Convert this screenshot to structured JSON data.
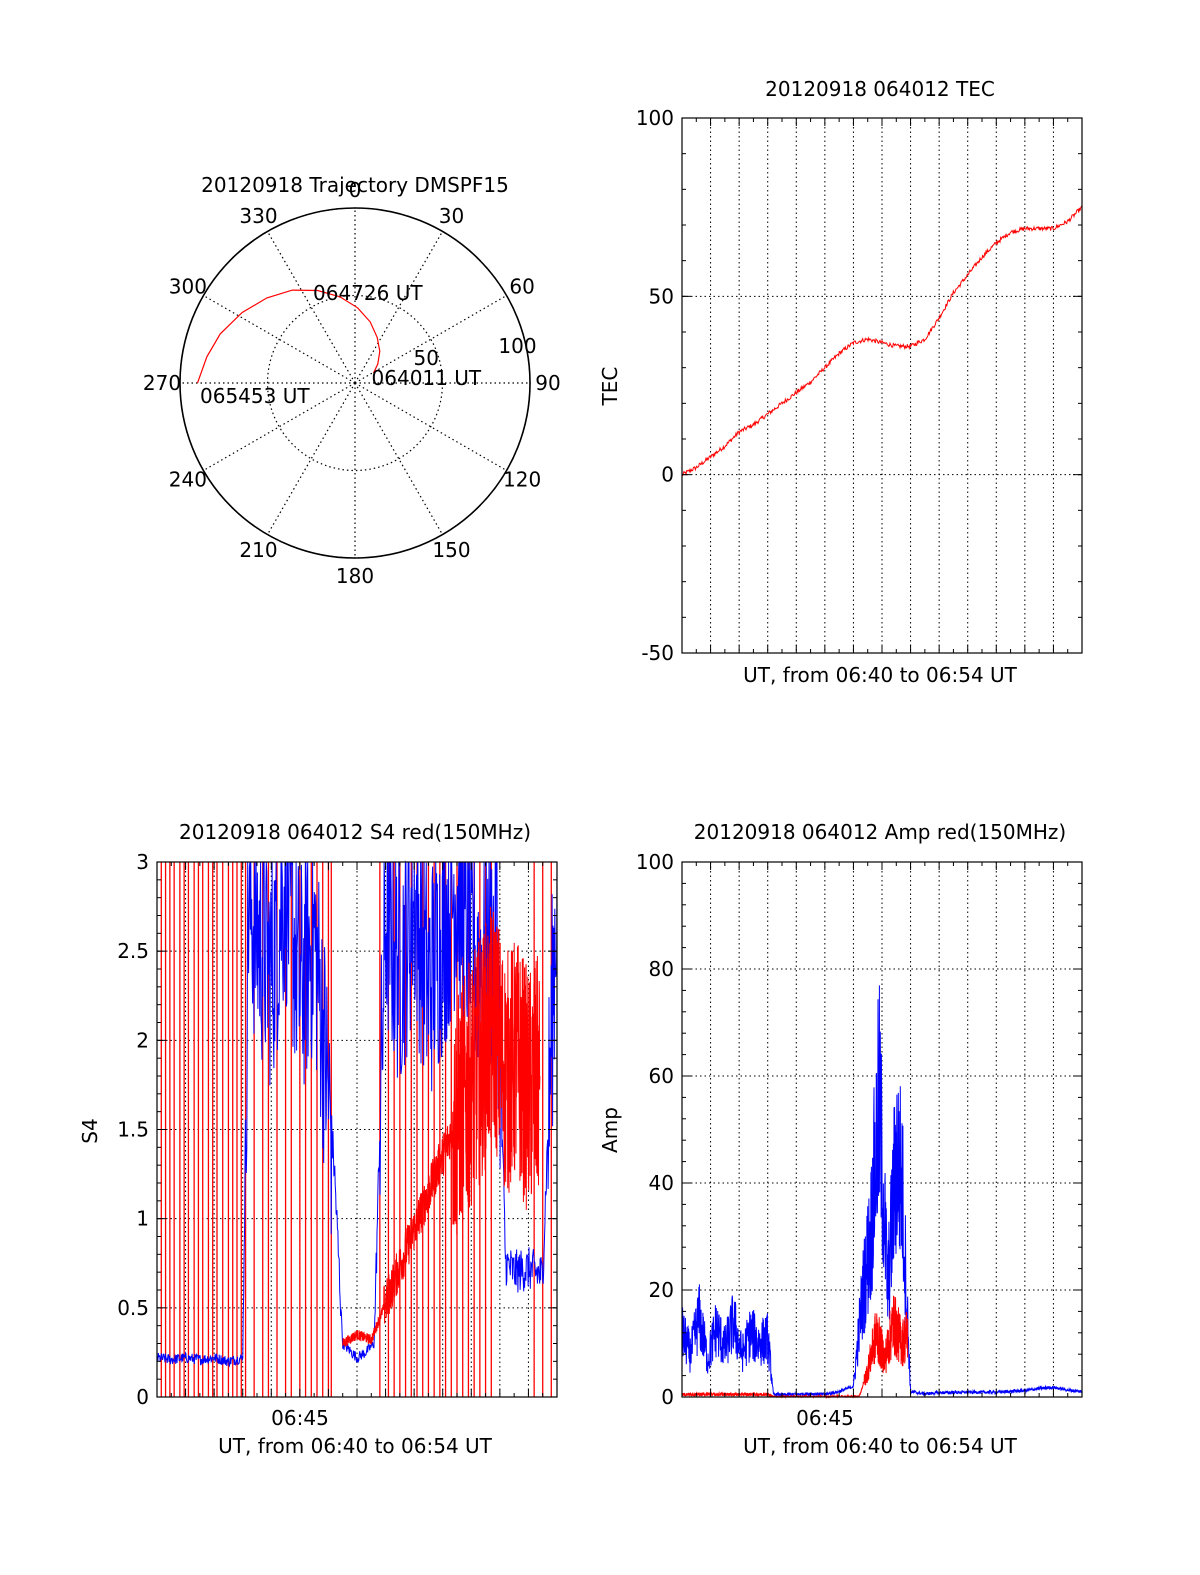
{
  "colors": {
    "red": "#ff0000",
    "blue": "#0000ff",
    "axis": "#000000",
    "grid": "#000000",
    "background": "#ffffff"
  },
  "chart_data": [
    {
      "id": "trajectory",
      "type": "polar",
      "title": "20120918 Trajectory DMSPF15",
      "angle_direction": "clockwise from top",
      "angle_labels": [
        "0",
        "30",
        "60",
        "90",
        "120",
        "150",
        "180",
        "210",
        "240",
        "270",
        "300",
        "330"
      ],
      "radial_labels": [
        "50",
        "100"
      ],
      "radial_range": [
        0,
        100
      ],
      "grid": true,
      "series": [
        {
          "color": "red",
          "points_az_el": [
            [
              62,
              12
            ],
            [
              50,
              17
            ],
            [
              38,
              23
            ],
            [
              26,
              29
            ],
            [
              14,
              36
            ],
            [
              2,
              43
            ],
            [
              -10,
              50
            ],
            [
              -22,
              57
            ],
            [
              -34,
              64
            ],
            [
              -46,
              70
            ],
            [
              -58,
              76
            ],
            [
              -70,
              82
            ],
            [
              -80,
              86
            ],
            [
              -90,
              90
            ]
          ]
        }
      ],
      "annotations": [
        {
          "text": "064011 UT",
          "az": 62,
          "r": 12
        },
        {
          "text": "064726 UT",
          "az": 10,
          "r": 58
        },
        {
          "text": "065453 UT",
          "az": 262,
          "r": 86
        }
      ]
    },
    {
      "id": "tec",
      "type": "line",
      "title": "20120918 064012 TEC",
      "xlabel": "UT, from 06:40 to 06:54 UT",
      "ylabel": "TEC",
      "xlim": [
        0,
        14
      ],
      "ylim": [
        -50,
        100
      ],
      "yticks": [
        "100",
        "50",
        "0",
        "-50"
      ],
      "grid": true,
      "series": [
        {
          "color": "red",
          "x": [
            0,
            0.5,
            1,
            1.5,
            2,
            2.5,
            3,
            3.5,
            4,
            4.5,
            5,
            5.5,
            6,
            6.5,
            7,
            7.5,
            8,
            8.5,
            9,
            9.5,
            10,
            10.5,
            11,
            11.5,
            12,
            12.5,
            13,
            13.5,
            14
          ],
          "values": [
            0,
            2,
            5,
            8,
            12,
            14,
            17,
            20,
            23,
            26,
            30,
            34,
            37,
            38,
            37,
            36,
            36,
            38,
            44,
            51,
            56,
            61,
            65,
            68,
            69,
            69,
            69,
            71,
            75
          ]
        }
      ]
    },
    {
      "id": "s4",
      "type": "line",
      "title": "20120918 064012 S4 red(150MHz)",
      "xlabel": "UT, from 06:40 to 06:54 UT",
      "ylabel": "S4",
      "xtick_label": "06:45",
      "xlim": [
        0,
        14
      ],
      "ylim": [
        0,
        3
      ],
      "yticks": [
        "3",
        "2.5",
        "2",
        "1.5",
        "1",
        "0.5",
        "0"
      ],
      "grid": true,
      "series": [
        {
          "color": "blue",
          "x": [
            0,
            0.5,
            1,
            1.5,
            2,
            2.5,
            3,
            3.2,
            3.5,
            4,
            4.5,
            5,
            5.5,
            6,
            6.2,
            6.5,
            7,
            7.3,
            7.6,
            8,
            8.5,
            9,
            9.5,
            10,
            10.5,
            11,
            11.5,
            11.9,
            12.2,
            12.5,
            13,
            13.5,
            14
          ],
          "values": [
            0.22,
            0.21,
            0.22,
            0.21,
            0.22,
            0.2,
            0.22,
            2.8,
            2.6,
            2.4,
            2.9,
            2.3,
            2.6,
            1.7,
            1.3,
            0.3,
            0.22,
            0.25,
            0.3,
            2.7,
            2.4,
            2.8,
            2.3,
            2.6,
            2.9,
            2.5,
            2.4,
            2.6,
            0.75,
            0.7,
            0.72,
            0.68,
            2.9
          ]
        },
        {
          "color": "red",
          "x": [
            6.5,
            7,
            7.5,
            11.8,
            12.2,
            12.6,
            13,
            13.4
          ],
          "values": [
            0.3,
            0.35,
            0.32,
            2.1,
            1.8,
            1.9,
            1.7,
            1.8
          ]
        }
      ]
    },
    {
      "id": "amp",
      "type": "line",
      "title": "20120918 064012 Amp red(150MHz)",
      "xlabel": "UT, from 06:40 to 06:54 UT",
      "ylabel": "Amp",
      "xtick_label": "06:45",
      "xlim": [
        0,
        14
      ],
      "ylim": [
        0,
        100
      ],
      "yticks": [
        "100",
        "80",
        "60",
        "40",
        "20",
        "0"
      ],
      "grid": true,
      "series": [
        {
          "color": "blue",
          "x": [
            0,
            0.3,
            0.6,
            0.9,
            1.2,
            1.5,
            1.8,
            2.1,
            2.4,
            2.7,
            3.0,
            3.2,
            3.5,
            4,
            4.5,
            5,
            5.5,
            6,
            6.3,
            6.6,
            6.9,
            7.2,
            7.5,
            7.7,
            8,
            8.5,
            9,
            10,
            11,
            12,
            12.5,
            13,
            13.5,
            14
          ],
          "values": [
            12,
            8,
            15,
            7,
            13,
            9,
            14,
            8,
            12,
            10,
            11,
            0.5,
            0.4,
            0.5,
            0.6,
            0.5,
            1,
            2,
            18,
            30,
            55,
            20,
            45,
            40,
            1,
            0.6,
            0.8,
            0.9,
            0.9,
            1.2,
            1.6,
            1.8,
            1.3,
            1
          ]
        },
        {
          "color": "red",
          "x": [
            0,
            1,
            2,
            3,
            3.2,
            6.2,
            6.5,
            6.8,
            7.1,
            7.4,
            7.7,
            7.9
          ],
          "values": [
            0.5,
            0.5,
            0.5,
            0.5,
            0,
            0,
            5,
            12,
            7,
            14,
            10,
            12
          ]
        }
      ]
    }
  ]
}
